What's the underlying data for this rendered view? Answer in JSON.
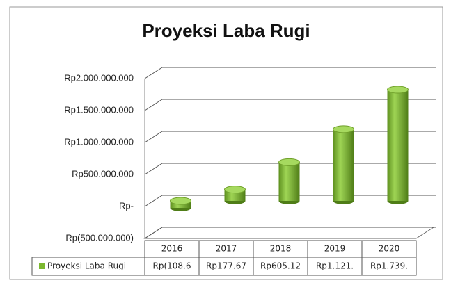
{
  "chart_data": {
    "type": "bar",
    "title": "Proyeksi Laba Rugi",
    "categories": [
      "2016",
      "2017",
      "2018",
      "2019",
      "2020"
    ],
    "series": [
      {
        "name": "Proyeksi Laba Rugi",
        "color": "#7cb82f",
        "values": [
          -108600000,
          177670000,
          605120000,
          1121000000,
          1739000000
        ],
        "value_labels": [
          "Rp(108.6",
          "Rp177.67",
          "Rp605.12",
          "Rp1.121.",
          "Rp1.739."
        ]
      }
    ],
    "ylim": [
      -500000000,
      2000000000
    ],
    "yticks": [
      {
        "value": -500000000,
        "label": "Rp(500.000.000)"
      },
      {
        "value": 0,
        "label": "Rp-"
      },
      {
        "value": 500000000,
        "label": "Rp500.000.000"
      },
      {
        "value": 1000000000,
        "label": "Rp1.000.000.000"
      },
      {
        "value": 1500000000,
        "label": "Rp1.500.000.000"
      },
      {
        "value": 2000000000,
        "label": "Rp2.000.000.000"
      }
    ],
    "grid": true
  }
}
